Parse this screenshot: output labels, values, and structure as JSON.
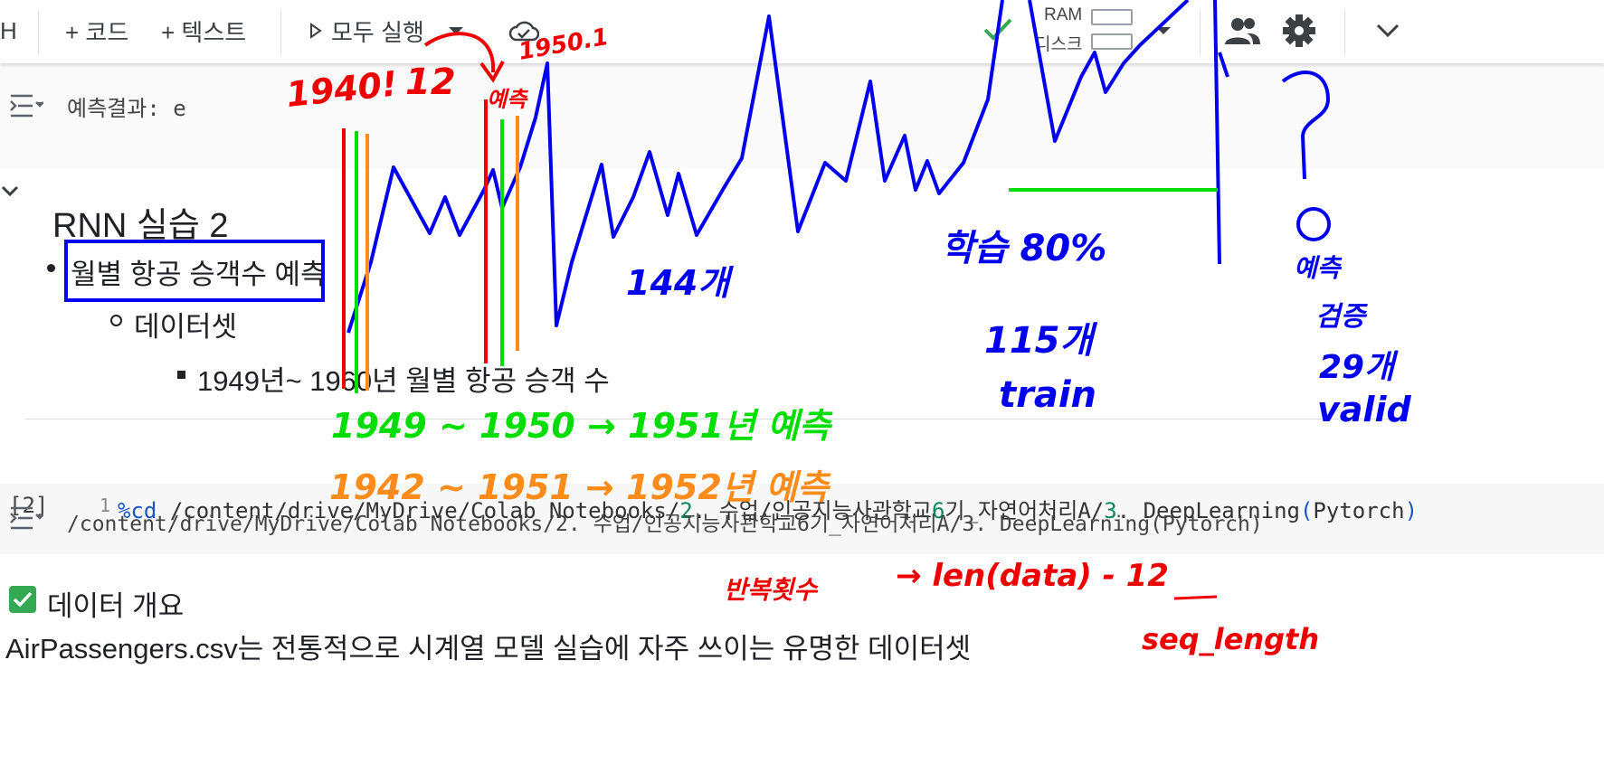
{
  "toolbar": {
    "partial_left": "H",
    "add_code": "+ 코드",
    "add_text": "+ 텍스트",
    "run_all": "모두 실행",
    "ram_label": "RAM",
    "disk_label": "디스크"
  },
  "output_1": {
    "text": "예측결과: e"
  },
  "section": {
    "title": "RNN 실습 2",
    "bullet_1": "월별 항공 승객수 예측",
    "bullet_2": "데이터셋",
    "bullet_3": "1949년~ 1960년 월별 항공 승객 수"
  },
  "code_cell": {
    "exec_count": "[2]",
    "line_number": "1",
    "magic": "%cd",
    "path_a": " /content/drive/MyDrive/Colab Notebooks/",
    "n2": "2",
    "path_b": ". 수업/인공지능사관학교",
    "n6": "6",
    "path_c": "기_자연어처리A/",
    "n3": "3",
    "path_d": ". DeepLearning",
    "paren_open": "(",
    "pytorch": "Pytorch",
    "paren_close": ")"
  },
  "output_2": {
    "text": "/content/drive/MyDrive/Colab Notebooks/2. 수업/인공지능사관학교6기_자연어처리A/3. DeepLearning(Pytorch)"
  },
  "data_overview": {
    "heading": "데이터 개요",
    "description": "AirPassengers.csv는 전통적으로 시계열 모델 실습에 자주 쓰이는 유명한 데이터셋"
  },
  "annotations": {
    "red_1940": "1940!",
    "red_12": "12",
    "red_1950": "1950.1",
    "red_predict": "예측",
    "blue_144": "144개",
    "blue_train_pct": "학습 80%",
    "blue_115": "115개",
    "blue_train": "train",
    "blue_predict": "예측",
    "blue_verify": "검증",
    "blue_29": "29개",
    "blue_valid": "valid",
    "green_range": "1949 ~ 1950 → 1951년 예측",
    "orange_range": "1942 ~ 1951 → 1952년 예측",
    "red_repeat": "반복횟수",
    "red_formula": "→ len(data) - 12",
    "red_seq": "seq_length"
  },
  "colors": {
    "accent_blue": "#1a73e8",
    "ink_blue": "#0000ee",
    "ink_red": "#ee0000",
    "ink_green": "#00dd00",
    "ink_orange": "#ff8c1a",
    "check_green": "#34a853"
  }
}
